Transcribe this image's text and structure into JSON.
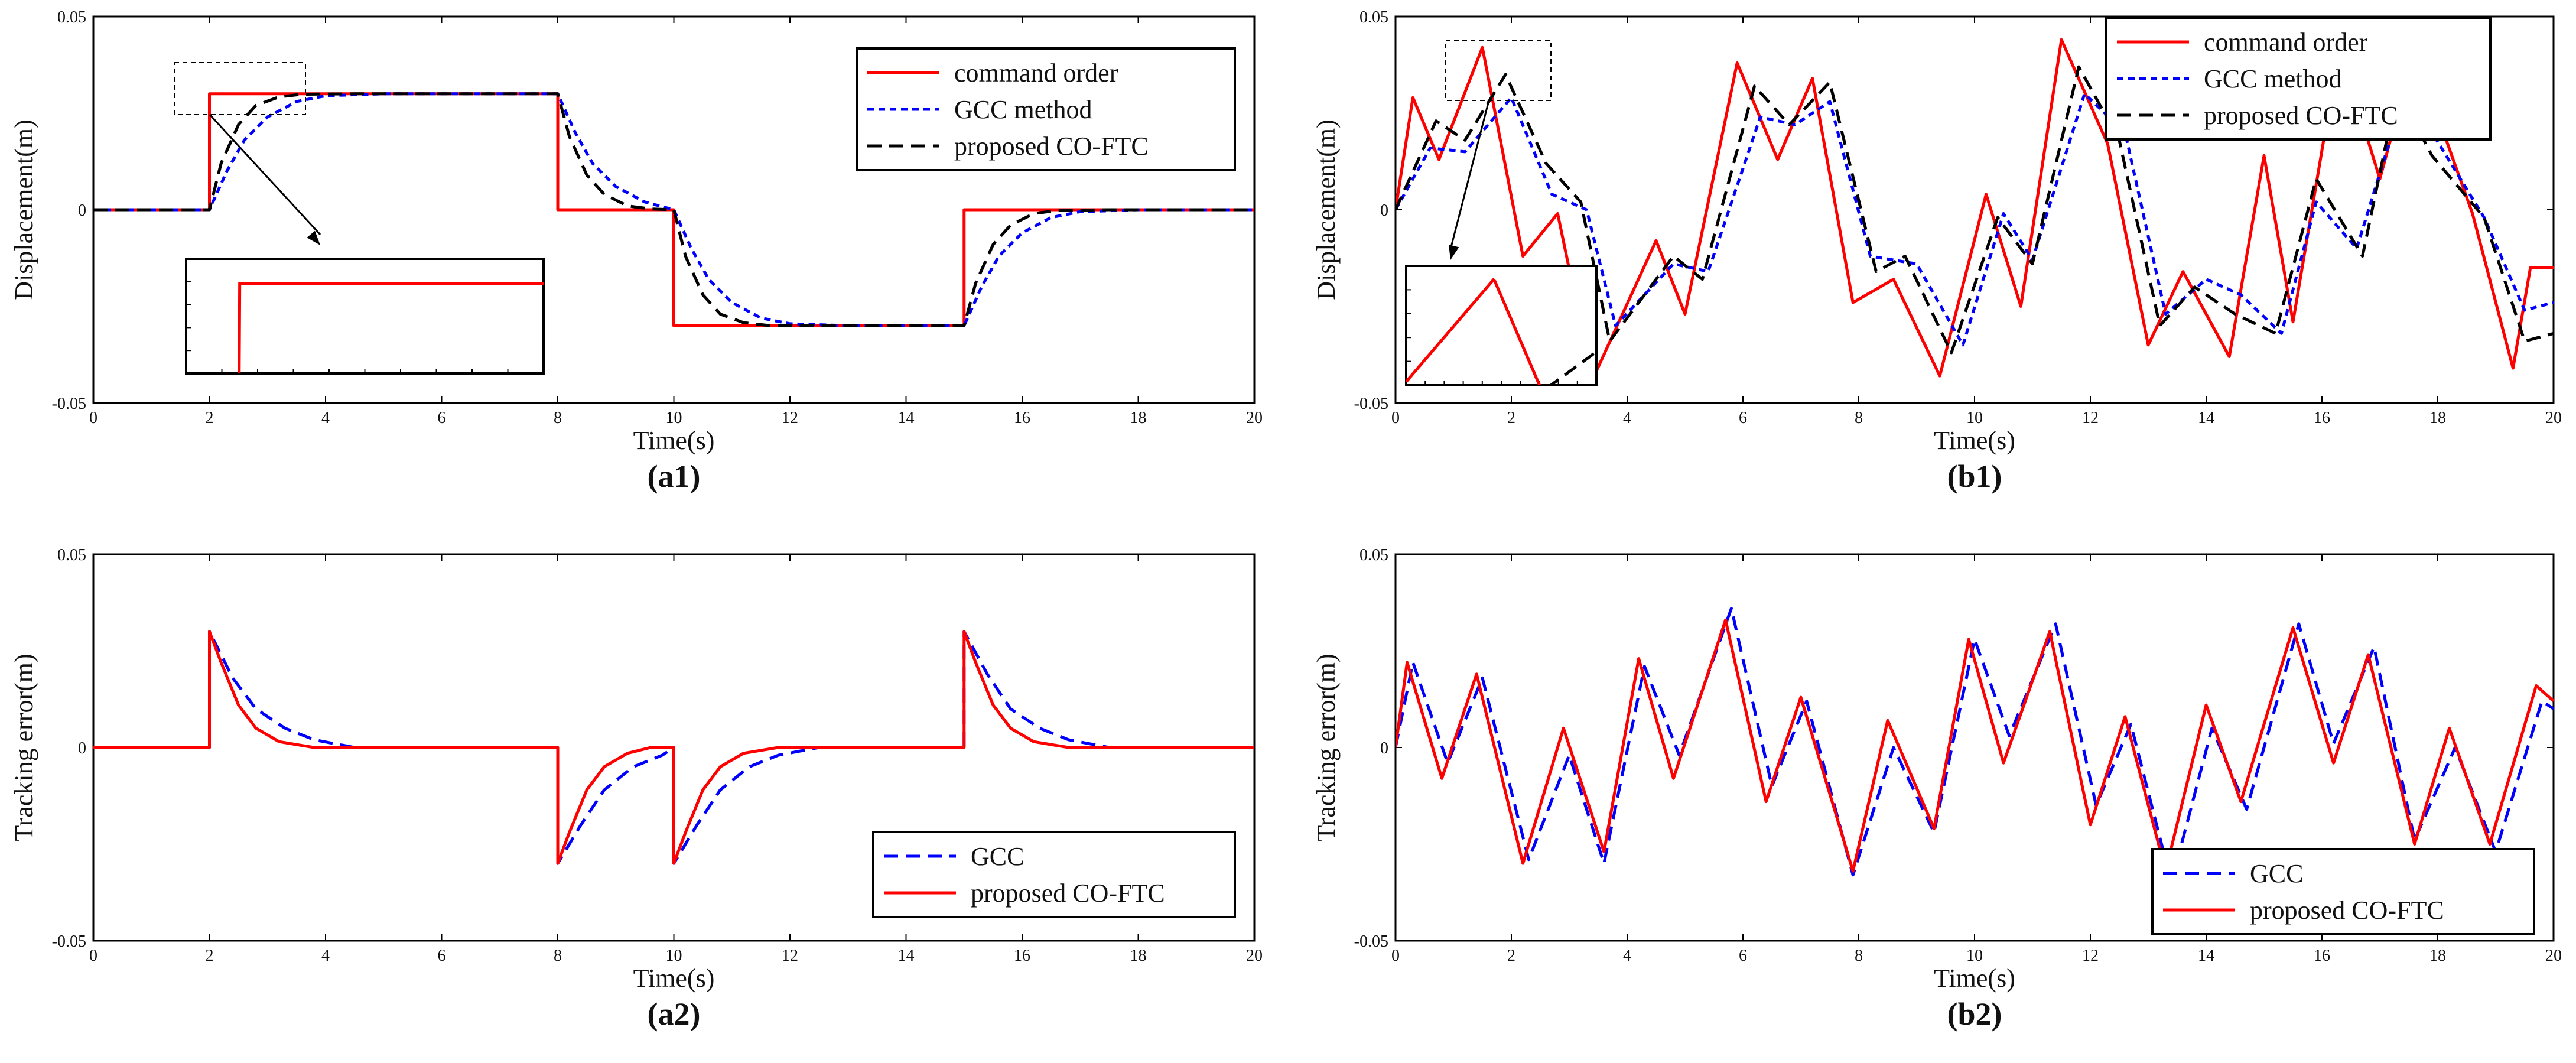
{
  "colors": {
    "command": "#ff0000",
    "gcc": "#0000ff",
    "coftc": "#000000",
    "axis": "#000000"
  },
  "chart_data": [
    {
      "id": "a1",
      "type": "line",
      "panel_label": "(a1)",
      "xlabel": "Time(s)",
      "ylabel": "Displacement(m)",
      "xlim": [
        0,
        20
      ],
      "ylim": [
        -0.05,
        0.05
      ],
      "xticks": [
        "0",
        "2",
        "4",
        "6",
        "8",
        "10",
        "12",
        "14",
        "16",
        "18",
        "20"
      ],
      "yticks": [
        "-0.05",
        "0",
        "0.05"
      ],
      "legend_position": "top-right",
      "inset": "zoom of the step near t = 2 s",
      "series": [
        {
          "name": "command order",
          "color": "#ff0000",
          "dash": "solid",
          "x": [
            0,
            2,
            2,
            8,
            8,
            10,
            10,
            15,
            15,
            20
          ],
          "y": [
            0,
            0,
            0.03,
            0.03,
            0,
            0,
            -0.03,
            -0.03,
            0,
            0
          ]
        },
        {
          "name": "GCC method",
          "color": "#0000ff",
          "dash": "dotted",
          "x": [
            0,
            2,
            2.3,
            2.6,
            3,
            3.5,
            4,
            5,
            8,
            8.3,
            8.6,
            9,
            9.5,
            10,
            10.3,
            10.6,
            11,
            11.5,
            12,
            13,
            15,
            15.3,
            15.6,
            16,
            16.5,
            17,
            18,
            20
          ],
          "y": [
            0,
            0,
            0.01,
            0.018,
            0.024,
            0.028,
            0.0295,
            0.03,
            0.03,
            0.02,
            0.012,
            0.006,
            0.002,
            0,
            -0.01,
            -0.018,
            -0.024,
            -0.028,
            -0.0295,
            -0.03,
            -0.03,
            -0.02,
            -0.012,
            -0.006,
            -0.002,
            -0.0005,
            0,
            0
          ]
        },
        {
          "name": "proposed CO-FTC",
          "color": "#000000",
          "dash": "dashed",
          "x": [
            0,
            2,
            2.2,
            2.5,
            2.8,
            3.2,
            3.6,
            4.5,
            8,
            8.2,
            8.5,
            8.8,
            9.2,
            9.6,
            10,
            10.2,
            10.5,
            10.8,
            11.2,
            11.6,
            12.5,
            15,
            15.2,
            15.5,
            15.8,
            16.2,
            16.6,
            17.5,
            20
          ],
          "y": [
            0,
            0,
            0.012,
            0.022,
            0.027,
            0.0292,
            0.0299,
            0.03,
            0.03,
            0.019,
            0.009,
            0.004,
            0.001,
            0.0002,
            0,
            -0.012,
            -0.022,
            -0.027,
            -0.0292,
            -0.0299,
            -0.03,
            -0.03,
            -0.019,
            -0.009,
            -0.004,
            -0.001,
            -0.0002,
            0,
            0
          ]
        }
      ]
    },
    {
      "id": "b1",
      "type": "line",
      "panel_label": "(b1)",
      "xlabel": "Time(s)",
      "ylabel": "Displacement(m)",
      "xlim": [
        0,
        20
      ],
      "ylim": [
        -0.05,
        0.05
      ],
      "xticks": [
        "0",
        "2",
        "4",
        "6",
        "8",
        "10",
        "12",
        "14",
        "16",
        "18",
        "20"
      ],
      "yticks": [
        "-0.05",
        "0",
        "0.05"
      ],
      "legend_position": "top-right",
      "inset": "zoom of the first peak near t = 1.5 s",
      "series": [
        {
          "name": "command order",
          "color": "#ff0000",
          "dash": "solid",
          "x": [
            0,
            0.3,
            0.75,
            1.5,
            2.2,
            2.8,
            3.4,
            4.5,
            5.0,
            5.9,
            6.6,
            7.2,
            7.9,
            8.6,
            9.4,
            10.2,
            10.8,
            11.5,
            12.3,
            13.0,
            13.6,
            14.4,
            15.0,
            15.5,
            16.3,
            17.0,
            17.6,
            18.6,
            19.3,
            19.6,
            20
          ],
          "y": [
            0,
            0.029,
            0.013,
            0.042,
            -0.012,
            -0.001,
            -0.044,
            -0.008,
            -0.027,
            0.038,
            0.013,
            0.034,
            -0.024,
            -0.018,
            -0.043,
            0.004,
            -0.025,
            0.044,
            0.017,
            -0.035,
            -0.016,
            -0.038,
            0.014,
            -0.029,
            0.042,
            0.008,
            0.041,
            -0.001,
            -0.041,
            -0.015,
            -0.015
          ]
        },
        {
          "name": "GCC method",
          "color": "#0000ff",
          "dash": "dotted",
          "x": [
            0,
            0.6,
            1.2,
            2.0,
            2.7,
            3.3,
            3.8,
            4.8,
            5.4,
            6.3,
            6.9,
            7.5,
            8.2,
            9.0,
            9.8,
            10.5,
            11.0,
            11.9,
            12.6,
            13.3,
            14.0,
            14.6,
            15.3,
            15.9,
            16.6,
            17.3,
            17.9,
            18.8,
            19.5,
            20
          ],
          "y": [
            0,
            0.016,
            0.015,
            0.029,
            0.004,
            0.0,
            -0.03,
            -0.014,
            -0.016,
            0.024,
            0.022,
            0.028,
            -0.012,
            -0.014,
            -0.035,
            -0.001,
            -0.013,
            0.03,
            0.02,
            -0.027,
            -0.018,
            -0.022,
            -0.032,
            0.002,
            -0.01,
            0.024,
            0.02,
            -0.002,
            -0.026,
            -0.024
          ]
        },
        {
          "name": "proposed CO-FTC",
          "color": "#000000",
          "dash": "dashed",
          "x": [
            0,
            0.7,
            1.2,
            1.9,
            2.6,
            3.2,
            3.7,
            4.8,
            5.3,
            6.2,
            6.8,
            7.5,
            8.3,
            8.8,
            9.6,
            10.4,
            11.0,
            11.8,
            12.5,
            13.2,
            13.8,
            14.5,
            15.2,
            15.9,
            16.7,
            17.3,
            17.9,
            18.8,
            19.5,
            20
          ],
          "y": [
            0,
            0.023,
            0.018,
            0.035,
            0.012,
            0.002,
            -0.034,
            -0.012,
            -0.018,
            0.032,
            0.022,
            0.033,
            -0.016,
            -0.012,
            -0.037,
            -0.002,
            -0.014,
            0.037,
            0.018,
            -0.03,
            -0.02,
            -0.027,
            -0.032,
            0.008,
            -0.012,
            0.031,
            0.014,
            -0.002,
            -0.034,
            -0.032
          ]
        }
      ]
    },
    {
      "id": "a2",
      "type": "line",
      "panel_label": "(a2)",
      "xlabel": "Time(s)",
      "ylabel": "Tracking error(m)",
      "xlim": [
        0,
        20
      ],
      "ylim": [
        -0.05,
        0.05
      ],
      "xticks": [
        "0",
        "2",
        "4",
        "6",
        "8",
        "10",
        "12",
        "14",
        "16",
        "18",
        "20"
      ],
      "yticks": [
        "-0.05",
        "0",
        "0.05"
      ],
      "legend_position": "bottom-right",
      "series": [
        {
          "name": "GCC",
          "color": "#0000ff",
          "dash": "dashed",
          "x": [
            0,
            2,
            2,
            2.4,
            2.8,
            3.3,
            3.8,
            4.5,
            8,
            8,
            8.4,
            8.8,
            9.3,
            9.8,
            10,
            10,
            10.4,
            10.8,
            11.3,
            11.8,
            12.5,
            15,
            15,
            15.4,
            15.8,
            16.3,
            16.8,
            17.5,
            20
          ],
          "y": [
            0,
            0,
            0.03,
            0.018,
            0.01,
            0.005,
            0.002,
            0,
            0,
            -0.03,
            -0.02,
            -0.011,
            -0.005,
            -0.002,
            0,
            -0.03,
            -0.02,
            -0.011,
            -0.005,
            -0.002,
            0,
            0,
            0.03,
            0.019,
            0.01,
            0.005,
            0.002,
            0,
            0
          ]
        },
        {
          "name": "proposed CO-FTC",
          "color": "#ff0000",
          "dash": "solid",
          "x": [
            0,
            2,
            2,
            2.2,
            2.5,
            2.8,
            3.2,
            3.8,
            8,
            8,
            8.2,
            8.5,
            8.8,
            9.2,
            9.6,
            10,
            10,
            10.2,
            10.5,
            10.8,
            11.2,
            11.8,
            15,
            15,
            15.2,
            15.5,
            15.8,
            16.2,
            16.8,
            20
          ],
          "y": [
            0,
            0,
            0.03,
            0.022,
            0.011,
            0.005,
            0.0015,
            0,
            0,
            -0.03,
            -0.022,
            -0.011,
            -0.005,
            -0.0015,
            0,
            0,
            -0.03,
            -0.022,
            -0.011,
            -0.005,
            -0.0015,
            0,
            0,
            0.03,
            0.022,
            0.011,
            0.005,
            0.0015,
            0,
            0
          ]
        }
      ]
    },
    {
      "id": "b2",
      "type": "line",
      "panel_label": "(b2)",
      "xlabel": "Time(s)",
      "ylabel": "Tracking error(m)",
      "xlim": [
        0,
        20
      ],
      "ylim": [
        -0.05,
        0.05
      ],
      "xticks": [
        "0",
        "2",
        "4",
        "6",
        "8",
        "10",
        "12",
        "14",
        "16",
        "18",
        "20"
      ],
      "yticks": [
        "-0.05",
        "0",
        "0.05"
      ],
      "legend_position": "bottom-right",
      "series": [
        {
          "name": "GCC",
          "color": "#0000ff",
          "dash": "dashed",
          "x": [
            0,
            0.3,
            0.9,
            1.5,
            2.3,
            3.0,
            3.6,
            4.3,
            4.9,
            5.8,
            6.5,
            7.1,
            7.9,
            8.6,
            9.3,
            10.0,
            10.6,
            11.4,
            12.1,
            12.7,
            13.4,
            14.1,
            14.7,
            15.6,
            16.2,
            16.9,
            17.6,
            18.3,
            19.0,
            19.8,
            20
          ],
          "y": [
            0,
            0.022,
            -0.004,
            0.018,
            -0.029,
            -0.002,
            -0.03,
            0.021,
            -0.002,
            0.036,
            -0.01,
            0.012,
            -0.033,
            0.0,
            -0.022,
            0.028,
            0.003,
            0.032,
            -0.015,
            0.006,
            -0.035,
            0.005,
            -0.016,
            0.032,
            0.001,
            0.026,
            -0.024,
            0.0,
            -0.027,
            0.012,
            0.01
          ]
        },
        {
          "name": "proposed CO-FTC",
          "color": "#ff0000",
          "dash": "solid",
          "x": [
            0,
            0.2,
            0.8,
            1.4,
            2.2,
            2.9,
            3.6,
            4.2,
            4.8,
            5.7,
            6.4,
            7.0,
            7.9,
            8.5,
            9.3,
            9.9,
            10.5,
            11.3,
            12.0,
            12.6,
            13.3,
            14.0,
            14.6,
            15.5,
            16.2,
            16.8,
            17.6,
            18.2,
            18.9,
            19.7,
            20
          ],
          "y": [
            0,
            0.022,
            -0.008,
            0.019,
            -0.03,
            0.005,
            -0.027,
            0.023,
            -0.008,
            0.033,
            -0.014,
            0.013,
            -0.032,
            0.007,
            -0.021,
            0.028,
            -0.004,
            0.03,
            -0.02,
            0.008,
            -0.032,
            0.011,
            -0.014,
            0.031,
            -0.004,
            0.024,
            -0.025,
            0.005,
            -0.025,
            0.016,
            0.012
          ]
        }
      ]
    }
  ]
}
